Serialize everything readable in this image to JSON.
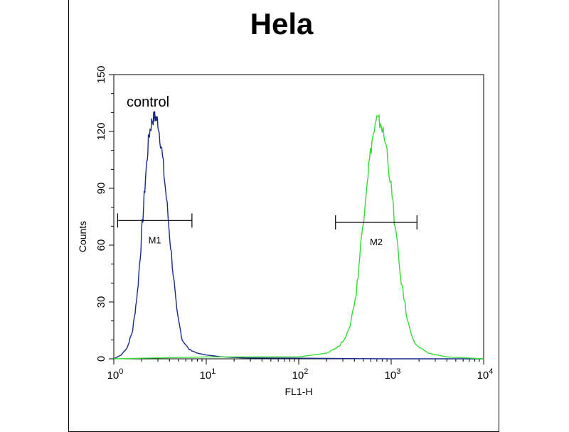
{
  "chart_data": {
    "type": "line",
    "title": "Hela",
    "xlabel": "FL1-H",
    "ylabel": "Counts",
    "xscale": "log",
    "xlim": [
      1,
      10000
    ],
    "ylim": [
      0,
      150
    ],
    "x_ticks": [
      {
        "base": "10",
        "exp": "0"
      },
      {
        "base": "10",
        "exp": "1"
      },
      {
        "base": "10",
        "exp": "2"
      },
      {
        "base": "10",
        "exp": "3"
      },
      {
        "base": "10",
        "exp": "4"
      }
    ],
    "y_ticks": [
      "0",
      "30",
      "60",
      "90",
      "120",
      "150"
    ],
    "grid": false,
    "annotations": [
      {
        "text": "control",
        "near_series": "control"
      }
    ],
    "series": [
      {
        "color": "#1a2a8c",
        "points": [
          [
            1.0,
            0
          ],
          [
            1.2,
            2
          ],
          [
            1.4,
            6
          ],
          [
            1.6,
            15
          ],
          [
            1.8,
            35
          ],
          [
            2.0,
            65
          ],
          [
            2.2,
            95
          ],
          [
            2.4,
            118
          ],
          [
            2.6,
            126
          ],
          [
            2.8,
            128
          ],
          [
            3.0,
            125
          ],
          [
            3.3,
            110
          ],
          [
            3.7,
            85
          ],
          [
            4.2,
            55
          ],
          [
            4.8,
            25
          ],
          [
            5.5,
            10
          ],
          [
            6.5,
            5
          ],
          [
            8.0,
            3
          ],
          [
            10,
            2
          ],
          [
            15,
            1
          ],
          [
            25,
            0.5
          ],
          [
            1000,
            0
          ],
          [
            10000,
            0
          ]
        ]
      },
      {
        "color": "#33dd33",
        "points": [
          [
            1.0,
            0
          ],
          [
            10,
            1
          ],
          [
            40,
            1
          ],
          [
            100,
            1
          ],
          [
            200,
            3
          ],
          [
            280,
            7
          ],
          [
            350,
            15
          ],
          [
            420,
            35
          ],
          [
            480,
            65
          ],
          [
            550,
            95
          ],
          [
            620,
            115
          ],
          [
            700,
            126
          ],
          [
            780,
            124
          ],
          [
            900,
            110
          ],
          [
            1050,
            80
          ],
          [
            1250,
            45
          ],
          [
            1500,
            20
          ],
          [
            1800,
            8
          ],
          [
            2500,
            3
          ],
          [
            4000,
            1
          ],
          [
            10000,
            0
          ]
        ]
      }
    ],
    "markers": [
      {
        "label": "M1",
        "x_range": [
          1.1,
          7
        ],
        "y": 73
      },
      {
        "label": "M2",
        "x_range": [
          250,
          1900
        ],
        "y": 72
      }
    ]
  }
}
